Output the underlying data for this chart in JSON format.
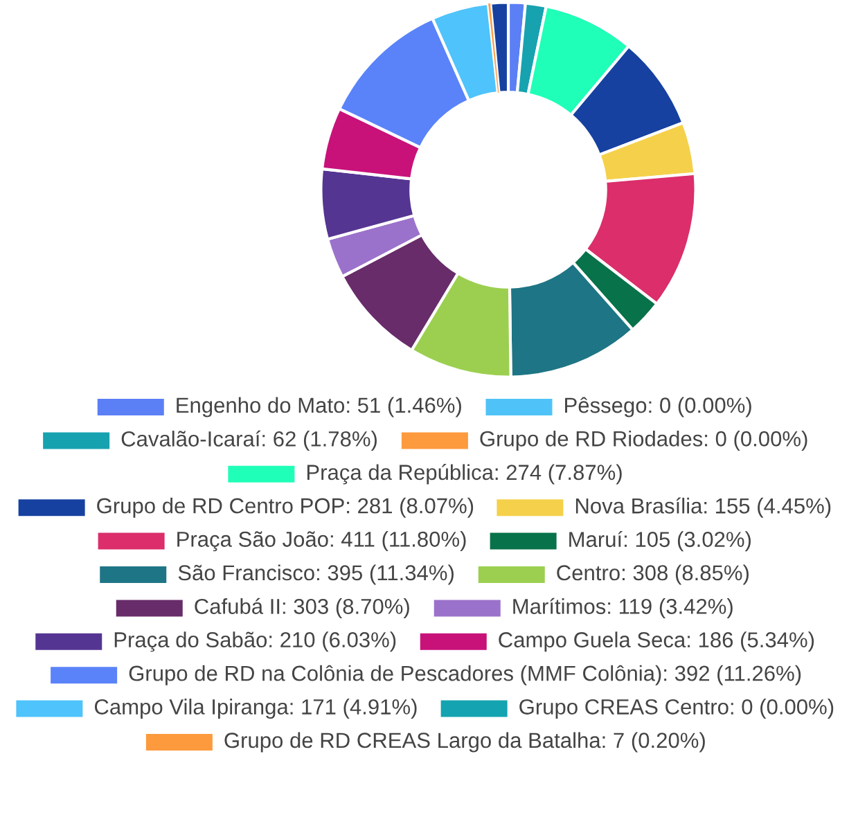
{
  "chart_data": {
    "type": "donut",
    "categories": [
      "Engenho do Mato",
      "Pêssego",
      "Cavalão-Icaraí",
      "Grupo de RD Riodades",
      "Praça da República",
      "Grupo de RD Centro POP",
      "Nova Brasília",
      "Praça São João",
      "Maruí",
      "São Francisco",
      "Centro",
      "Cafubá II",
      "Marítimos",
      "Praça do Sabão",
      "Campo Guela Seca",
      "Grupo de RD na Colônia de Pescadores (MMF Colônia)",
      "Campo Vila Ipiranga",
      "Grupo CREAS Centro",
      "Grupo de RD CREAS Largo da Batalha",
      null
    ],
    "values": [
      51,
      0,
      62,
      0,
      274,
      281,
      155,
      411,
      105,
      395,
      308,
      303,
      119,
      210,
      186,
      392,
      171,
      0,
      7,
      53
    ],
    "value_labels": [
      "51 (1.46%)",
      "0 (0.00%)",
      "62 (1.78%)",
      "0 (0.00%)",
      "274 (7.87%)",
      "281 (8.07%)",
      "155 (4.45%)",
      "411 (11.80%)",
      "105 (3.02%)",
      "395 (11.34%)",
      "308 (8.85%)",
      "303 (8.70%)",
      "119 (3.42%)",
      "210 (6.03%)",
      "186 (5.34%)",
      "392 (11.26%)",
      "171 (4.91%)",
      "0 (0.00%)",
      "7 (0.20%)",
      null
    ],
    "colors": [
      "#5b7ff5",
      "#4fc3f7",
      "#17a2b0",
      "#fd9a3e",
      "#1fffb8",
      "#1641a0",
      "#f5d04a",
      "#db2e6b",
      "#08724a",
      "#1e7585",
      "#9ccf50",
      "#682c6a",
      "#9b72cb",
      "#553592",
      "#c8127a",
      "#5a83fa",
      "#4fc3fb",
      "#14a3b0",
      "#fd9a3e",
      "#1641a0"
    ],
    "legend": "bottom"
  }
}
